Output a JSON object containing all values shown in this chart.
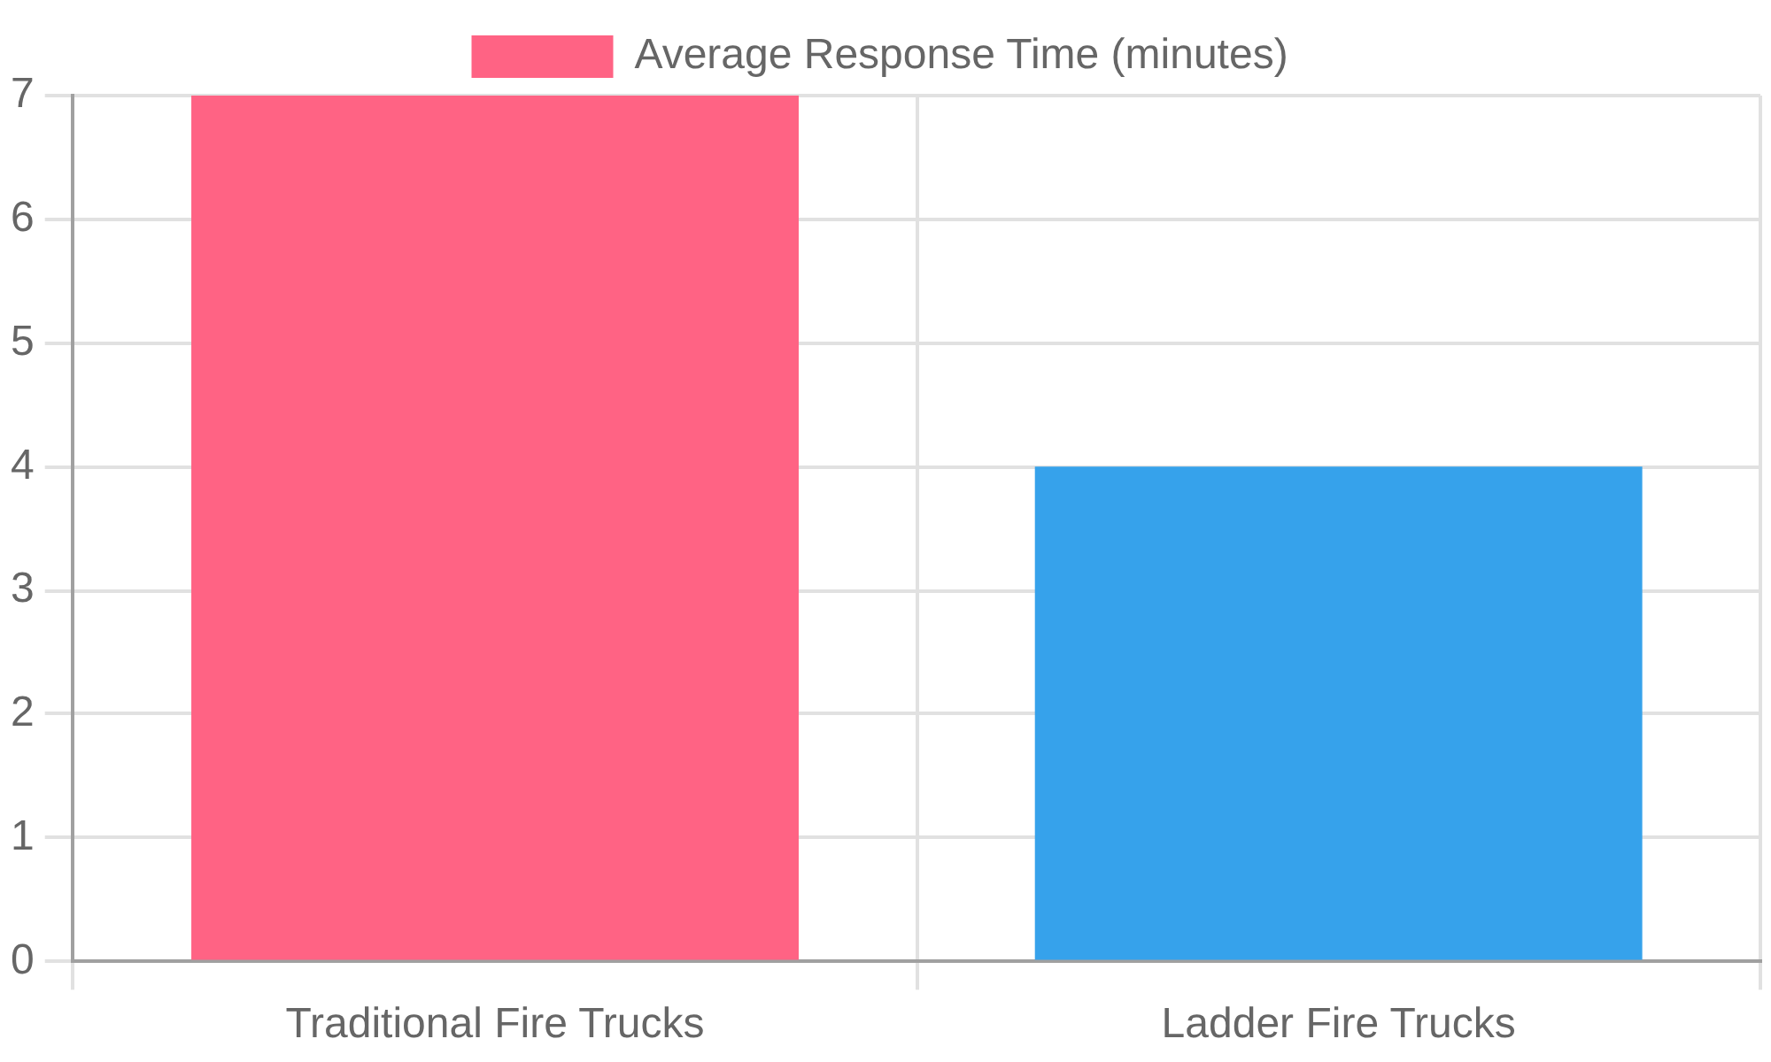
{
  "chart_data": {
    "type": "bar",
    "categories": [
      "Traditional Fire Trucks",
      "Ladder Fire Trucks"
    ],
    "series": [
      {
        "name": "Average Response Time (minutes)",
        "colors": [
          "#ff6384",
          "#36a2eb"
        ],
        "values": [
          7,
          4
        ]
      }
    ],
    "ylim": [
      0,
      7
    ],
    "yticks": [
      0,
      1,
      2,
      3,
      4,
      5,
      6,
      7
    ],
    "grid": true,
    "legend": "top"
  }
}
